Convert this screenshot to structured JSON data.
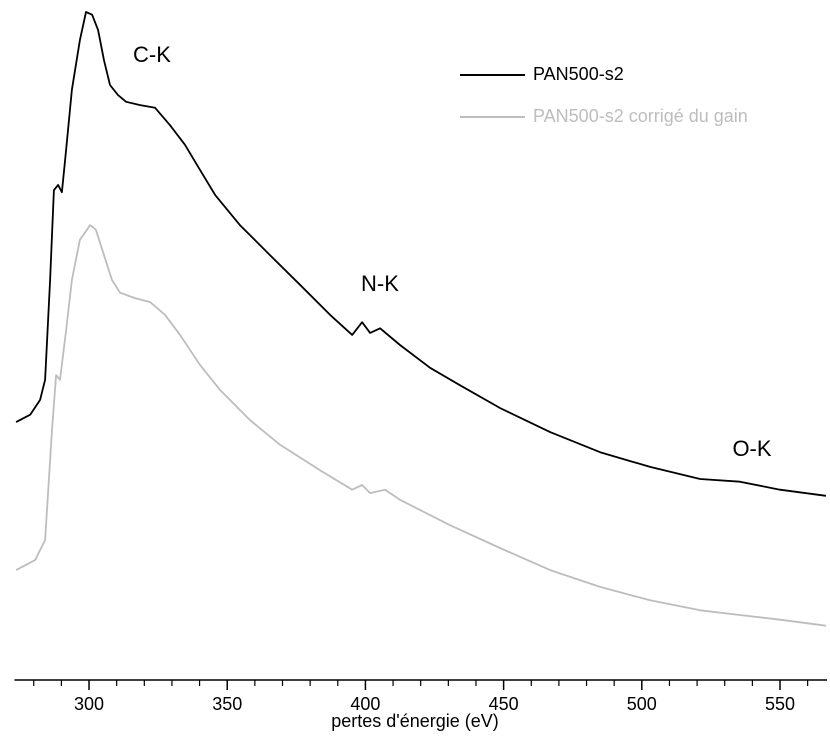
{
  "chart_data": {
    "type": "line",
    "xlabel": "pertes d'énergie (eV)",
    "xlim": [
      273,
      567
    ],
    "xticks": [
      300,
      350,
      400,
      450,
      500,
      550
    ],
    "xminorticks": [
      280,
      290,
      310,
      320,
      330,
      340,
      360,
      370,
      380,
      390,
      410,
      420,
      430,
      440,
      460,
      470,
      480,
      490,
      510,
      520,
      530,
      540,
      560
    ],
    "ylim": [
      0,
      100
    ],
    "legend": "top-right",
    "annotations": [
      "C-K",
      "N-K",
      "O-K"
    ],
    "series": [
      {
        "name": "PAN500-s2",
        "color": "#000000",
        "x": [
          273.6,
          278.7,
          282.3,
          284.1,
          285.9,
          287.3,
          288.8,
          290.2,
          291.7,
          293.8,
          296.7,
          298.9,
          301.1,
          303.3,
          305.4,
          307.6,
          310.5,
          313.4,
          318.5,
          323.9,
          329.3,
          334.7,
          340.2,
          345.6,
          354.6,
          365.5,
          376.3,
          387.2,
          395.2,
          398.8,
          401.7,
          405.3,
          412.5,
          423.4,
          434.2,
          448.7,
          466.8,
          484.9,
          503.0,
          521.1,
          535.5,
          550.0,
          566.6
        ],
        "values": [
          38.5,
          39.6,
          41.8,
          44.8,
          59.7,
          73.1,
          73.9,
          72.8,
          79.1,
          88.1,
          95.5,
          99.7,
          99.3,
          97.0,
          92.5,
          88.8,
          87.3,
          86.3,
          85.8,
          85.4,
          82.8,
          79.9,
          76.1,
          72.4,
          67.9,
          63.4,
          59.0,
          54.5,
          51.5,
          53.4,
          51.8,
          52.5,
          50.0,
          46.6,
          44.0,
          40.6,
          37.0,
          34.0,
          31.8,
          30.0,
          29.6,
          28.4,
          27.5
        ]
      },
      {
        "name": "PAN500-s2  corrigé du gain",
        "color": "#bdbdbd",
        "x": [
          273.6,
          280.5,
          284.1,
          286.6,
          288.1,
          289.5,
          291.7,
          293.8,
          296.7,
          300.4,
          302.5,
          305.4,
          308.3,
          311.2,
          316.6,
          322.1,
          327.5,
          332.9,
          340.2,
          347.4,
          358.2,
          369.1,
          383.6,
          395.2,
          398.8,
          401.7,
          407.1,
          412.5,
          430.6,
          448.7,
          466.8,
          484.9,
          503.0,
          521.1,
          535.5,
          550.0,
          566.6
        ],
        "values": [
          16.4,
          17.9,
          20.9,
          37.3,
          45.5,
          44.8,
          52.2,
          59.7,
          65.7,
          67.9,
          67.2,
          63.4,
          59.7,
          57.8,
          57.0,
          56.4,
          54.5,
          51.5,
          47.0,
          43.3,
          38.8,
          35.1,
          31.3,
          28.4,
          29.1,
          27.9,
          28.4,
          26.9,
          23.1,
          19.7,
          16.4,
          13.9,
          11.9,
          10.4,
          9.7,
          9.0,
          8.1
        ]
      }
    ]
  }
}
